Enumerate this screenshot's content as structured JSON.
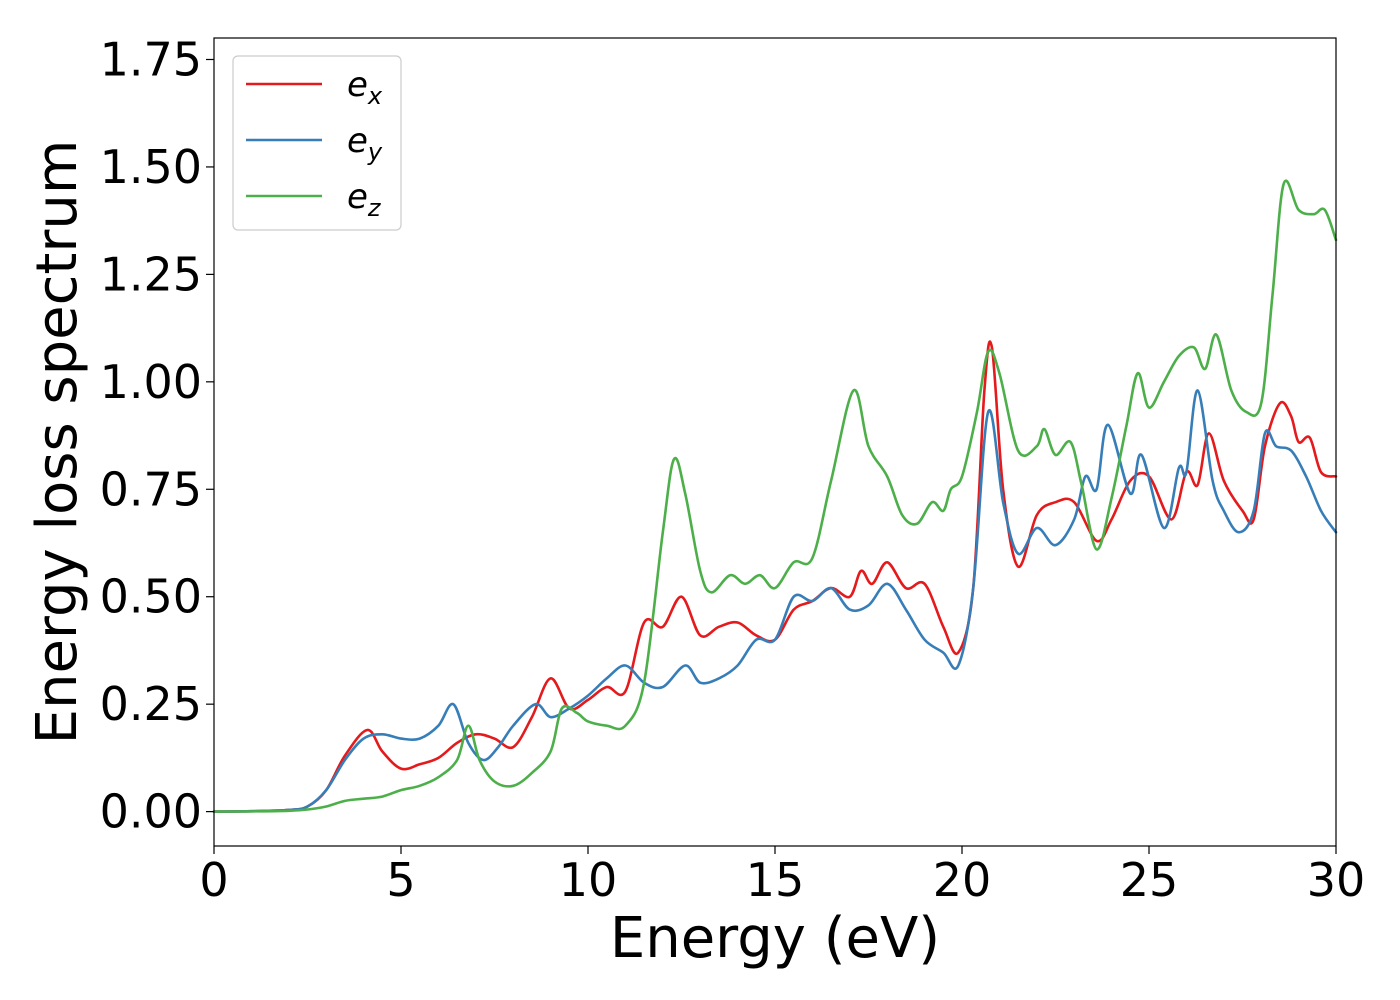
{
  "chart_data": {
    "type": "line",
    "title": "",
    "xlabel": "Energy (eV)",
    "ylabel": "Energy loss spectrum",
    "xlim": [
      0,
      30
    ],
    "ylim": [
      -0.08,
      1.8
    ],
    "xticks": [
      0,
      5,
      10,
      15,
      20,
      25,
      30
    ],
    "xtick_labels": [
      "0",
      "5",
      "10",
      "15",
      "20",
      "25",
      "30"
    ],
    "yticks": [
      0.0,
      0.25,
      0.5,
      0.75,
      1.0,
      1.25,
      1.5,
      1.75
    ],
    "ytick_labels": [
      "0.00",
      "0.25",
      "0.50",
      "0.75",
      "1.00",
      "1.25",
      "1.50",
      "1.75"
    ],
    "grid": false,
    "legend": "top-left",
    "series": [
      {
        "name": "e_x",
        "label_base": "e",
        "label_sub": "x",
        "color": "#e41a1c",
        "points": [
          [
            0,
            0
          ],
          [
            1,
            0.001
          ],
          [
            2,
            0.004
          ],
          [
            2.5,
            0.012
          ],
          [
            3,
            0.05
          ],
          [
            3.5,
            0.13
          ],
          [
            4.1,
            0.19
          ],
          [
            4.5,
            0.14
          ],
          [
            5,
            0.1
          ],
          [
            5.5,
            0.11
          ],
          [
            6,
            0.125
          ],
          [
            6.5,
            0.16
          ],
          [
            7,
            0.18
          ],
          [
            7.5,
            0.17
          ],
          [
            8,
            0.15
          ],
          [
            8.5,
            0.22
          ],
          [
            9,
            0.31
          ],
          [
            9.5,
            0.24
          ],
          [
            10,
            0.26
          ],
          [
            10.5,
            0.29
          ],
          [
            11,
            0.28
          ],
          [
            11.5,
            0.44
          ],
          [
            12,
            0.43
          ],
          [
            12.5,
            0.5
          ],
          [
            13,
            0.41
          ],
          [
            13.5,
            0.43
          ],
          [
            14,
            0.44
          ],
          [
            14.5,
            0.41
          ],
          [
            15,
            0.4
          ],
          [
            15.5,
            0.47
          ],
          [
            16,
            0.49
          ],
          [
            16.5,
            0.52
          ],
          [
            17,
            0.5
          ],
          [
            17.3,
            0.56
          ],
          [
            17.6,
            0.53
          ],
          [
            18,
            0.58
          ],
          [
            18.5,
            0.52
          ],
          [
            19,
            0.53
          ],
          [
            19.5,
            0.43
          ],
          [
            19.9,
            0.37
          ],
          [
            20.3,
            0.52
          ],
          [
            20.6,
            0.98
          ],
          [
            20.8,
            1.08
          ],
          [
            21.1,
            0.75
          ],
          [
            21.5,
            0.57
          ],
          [
            22,
            0.69
          ],
          [
            22.5,
            0.72
          ],
          [
            23,
            0.72
          ],
          [
            23.6,
            0.63
          ],
          [
            24,
            0.68
          ],
          [
            24.5,
            0.77
          ],
          [
            25,
            0.78
          ],
          [
            25.6,
            0.68
          ],
          [
            26,
            0.79
          ],
          [
            26.3,
            0.76
          ],
          [
            26.6,
            0.88
          ],
          [
            27,
            0.77
          ],
          [
            27.5,
            0.7
          ],
          [
            27.8,
            0.68
          ],
          [
            28.1,
            0.85
          ],
          [
            28.5,
            0.95
          ],
          [
            28.8,
            0.92
          ],
          [
            29,
            0.86
          ],
          [
            29.3,
            0.87
          ],
          [
            29.6,
            0.79
          ],
          [
            30,
            0.78
          ]
        ]
      },
      {
        "name": "e_y",
        "label_base": "e",
        "label_sub": "y",
        "color": "#377eb8",
        "points": [
          [
            0,
            0
          ],
          [
            1,
            0.001
          ],
          [
            2,
            0.004
          ],
          [
            2.5,
            0.012
          ],
          [
            3,
            0.05
          ],
          [
            3.5,
            0.12
          ],
          [
            4,
            0.17
          ],
          [
            4.5,
            0.18
          ],
          [
            5,
            0.17
          ],
          [
            5.5,
            0.17
          ],
          [
            6,
            0.2
          ],
          [
            6.4,
            0.25
          ],
          [
            6.8,
            0.16
          ],
          [
            7.2,
            0.12
          ],
          [
            7.6,
            0.15
          ],
          [
            8,
            0.2
          ],
          [
            8.6,
            0.25
          ],
          [
            9,
            0.22
          ],
          [
            9.5,
            0.24
          ],
          [
            10,
            0.27
          ],
          [
            10.5,
            0.31
          ],
          [
            11,
            0.34
          ],
          [
            11.5,
            0.3
          ],
          [
            12,
            0.29
          ],
          [
            12.6,
            0.34
          ],
          [
            13,
            0.3
          ],
          [
            13.5,
            0.31
          ],
          [
            14,
            0.34
          ],
          [
            14.5,
            0.4
          ],
          [
            15,
            0.4
          ],
          [
            15.5,
            0.5
          ],
          [
            16,
            0.49
          ],
          [
            16.5,
            0.52
          ],
          [
            17,
            0.47
          ],
          [
            17.5,
            0.48
          ],
          [
            18,
            0.53
          ],
          [
            18.5,
            0.47
          ],
          [
            19,
            0.4
          ],
          [
            19.5,
            0.37
          ],
          [
            19.9,
            0.34
          ],
          [
            20.3,
            0.52
          ],
          [
            20.7,
            0.93
          ],
          [
            21.1,
            0.72
          ],
          [
            21.5,
            0.6
          ],
          [
            22,
            0.66
          ],
          [
            22.5,
            0.62
          ],
          [
            23,
            0.68
          ],
          [
            23.3,
            0.78
          ],
          [
            23.6,
            0.75
          ],
          [
            23.9,
            0.9
          ],
          [
            24.5,
            0.74
          ],
          [
            24.8,
            0.83
          ],
          [
            25.4,
            0.66
          ],
          [
            25.8,
            0.8
          ],
          [
            26,
            0.79
          ],
          [
            26.3,
            0.98
          ],
          [
            26.7,
            0.77
          ],
          [
            27,
            0.7
          ],
          [
            27.4,
            0.65
          ],
          [
            27.8,
            0.7
          ],
          [
            28.1,
            0.88
          ],
          [
            28.4,
            0.85
          ],
          [
            28.8,
            0.84
          ],
          [
            29.2,
            0.78
          ],
          [
            29.6,
            0.7
          ],
          [
            30,
            0.65
          ]
        ]
      },
      {
        "name": "e_z",
        "label_base": "e",
        "label_sub": "z",
        "color": "#4daf4a",
        "points": [
          [
            0,
            0
          ],
          [
            1,
            0.0005
          ],
          [
            2,
            0.002
          ],
          [
            2.5,
            0.005
          ],
          [
            3,
            0.012
          ],
          [
            3.5,
            0.025
          ],
          [
            4,
            0.03
          ],
          [
            4.5,
            0.035
          ],
          [
            5,
            0.05
          ],
          [
            5.5,
            0.06
          ],
          [
            6,
            0.08
          ],
          [
            6.5,
            0.12
          ],
          [
            6.8,
            0.2
          ],
          [
            7.1,
            0.12
          ],
          [
            7.5,
            0.07
          ],
          [
            8,
            0.06
          ],
          [
            8.5,
            0.09
          ],
          [
            9,
            0.14
          ],
          [
            9.3,
            0.24
          ],
          [
            9.7,
            0.23
          ],
          [
            10,
            0.21
          ],
          [
            10.5,
            0.2
          ],
          [
            11,
            0.2
          ],
          [
            11.5,
            0.3
          ],
          [
            12,
            0.65
          ],
          [
            12.3,
            0.82
          ],
          [
            12.6,
            0.74
          ],
          [
            13,
            0.56
          ],
          [
            13.3,
            0.51
          ],
          [
            13.8,
            0.55
          ],
          [
            14.2,
            0.53
          ],
          [
            14.6,
            0.55
          ],
          [
            15,
            0.52
          ],
          [
            15.5,
            0.58
          ],
          [
            16,
            0.59
          ],
          [
            16.5,
            0.77
          ],
          [
            17.1,
            0.98
          ],
          [
            17.5,
            0.85
          ],
          [
            18,
            0.78
          ],
          [
            18.4,
            0.69
          ],
          [
            18.8,
            0.67
          ],
          [
            19.2,
            0.72
          ],
          [
            19.5,
            0.7
          ],
          [
            19.7,
            0.75
          ],
          [
            20,
            0.78
          ],
          [
            20.4,
            0.93
          ],
          [
            20.7,
            1.07
          ],
          [
            21,
            1.02
          ],
          [
            21.5,
            0.84
          ],
          [
            22,
            0.85
          ],
          [
            22.2,
            0.89
          ],
          [
            22.5,
            0.83
          ],
          [
            22.9,
            0.86
          ],
          [
            23.2,
            0.76
          ],
          [
            23.6,
            0.61
          ],
          [
            24,
            0.73
          ],
          [
            24.4,
            0.9
          ],
          [
            24.7,
            1.02
          ],
          [
            25,
            0.94
          ],
          [
            25.4,
            1.0
          ],
          [
            25.8,
            1.06
          ],
          [
            26.2,
            1.08
          ],
          [
            26.5,
            1.03
          ],
          [
            26.8,
            1.11
          ],
          [
            27.2,
            0.98
          ],
          [
            27.6,
            0.93
          ],
          [
            28,
            0.95
          ],
          [
            28.3,
            1.2
          ],
          [
            28.6,
            1.46
          ],
          [
            29,
            1.4
          ],
          [
            29.4,
            1.39
          ],
          [
            29.7,
            1.4
          ],
          [
            30,
            1.33
          ]
        ]
      }
    ]
  }
}
